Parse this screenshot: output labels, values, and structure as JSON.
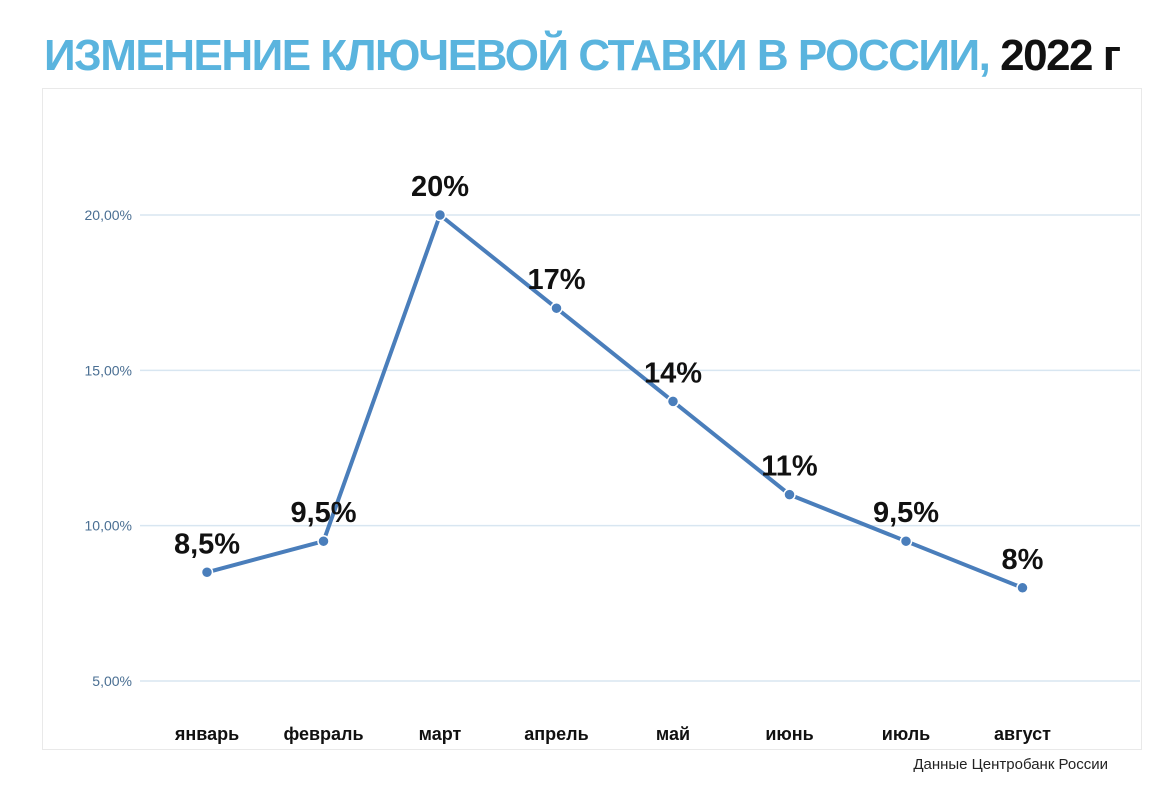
{
  "header": {
    "title": "ИЗМЕНЕНИЕ КЛЮЧЕВОЙ СТАВКИ В РОССИИ,",
    "year": "2022 г"
  },
  "footer": {
    "source": "Данные Центробанк России"
  },
  "colors": {
    "title": "#5ab4de",
    "line": "#4a7ebb",
    "grid": "#d8e6f1",
    "tick": "#4a6f93"
  },
  "chart_data": {
    "type": "line",
    "title": "ИЗМЕНЕНИЕ КЛЮЧЕВОЙ СТАВКИ В РОССИИ, 2022 г",
    "categories": [
      "январь",
      "февраль",
      "март",
      "апрель",
      "май",
      "июнь",
      "июль",
      "август"
    ],
    "series": [
      {
        "values": [
          8.5,
          9.5,
          20,
          17,
          14,
          11,
          9.5,
          8
        ],
        "labels": [
          "8,5%",
          "9,5%",
          "20%",
          "17%",
          "14%",
          "11%",
          "9,5%",
          "8%"
        ]
      }
    ],
    "yticks": [
      5,
      10,
      15,
      20
    ],
    "ytick_labels": [
      "5,00%",
      "10,00%",
      "15,00%",
      "20,00%"
    ],
    "ylim": [
      5,
      20
    ],
    "grid": true,
    "legend": "none",
    "xlabel": "",
    "ylabel": ""
  }
}
